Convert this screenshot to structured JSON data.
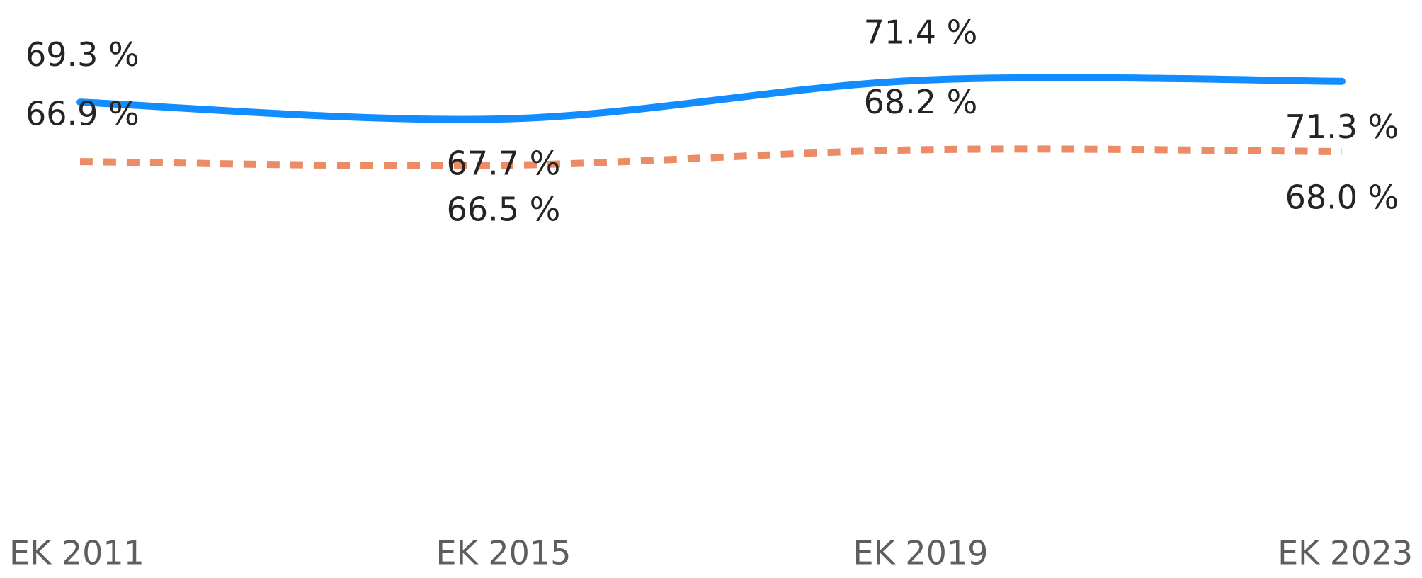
{
  "chart_data": {
    "type": "line",
    "categories": [
      "EK 2011",
      "EK 2015",
      "EK 2019",
      "EK 2023"
    ],
    "series": [
      {
        "color": "#118dff",
        "style": "solid",
        "values": [
          69.3,
          67.7,
          71.4,
          71.3
        ],
        "value_labels": [
          "69.3 %",
          "67.7 %",
          "71.4 %",
          "71.3 %"
        ]
      },
      {
        "color": "#ec8c66",
        "style": "dashed",
        "axis": "y2",
        "values": [
          66.9,
          66.5,
          68.2,
          68.0
        ],
        "value_labels": [
          "66.9 %",
          "66.5 %",
          "68.2 %",
          "68.0 %"
        ]
      }
    ],
    "ylim": [
      29,
      75
    ],
    "y2lim": [
      27,
      80
    ],
    "grid": false
  }
}
